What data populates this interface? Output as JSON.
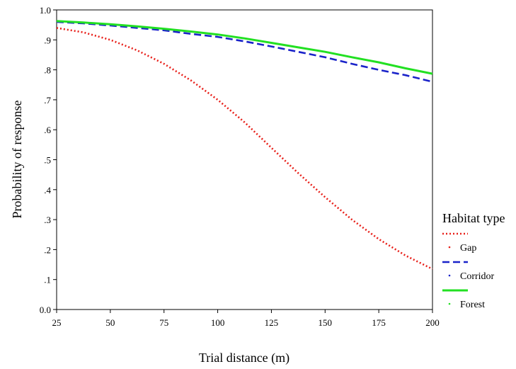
{
  "chart_data": {
    "type": "line",
    "title": "",
    "xlabel": "Trial distance (m)",
    "ylabel": "Probability of response",
    "xlim": [
      25,
      200
    ],
    "ylim": [
      0,
      1
    ],
    "x_ticks": [
      25,
      50,
      75,
      100,
      125,
      150,
      175,
      200
    ],
    "y_ticks": [
      {
        "value": 0.0,
        "label": "0.0"
      },
      {
        "value": 0.1,
        "label": ".1"
      },
      {
        "value": 0.2,
        "label": ".2"
      },
      {
        "value": 0.3,
        "label": ".3"
      },
      {
        "value": 0.4,
        "label": ".4"
      },
      {
        "value": 0.5,
        "label": ".5"
      },
      {
        "value": 0.6,
        "label": ".6"
      },
      {
        "value": 0.7,
        "label": ".7"
      },
      {
        "value": 0.8,
        "label": ".8"
      },
      {
        "value": 0.9,
        "label": ".9"
      },
      {
        "value": 1.0,
        "label": "1.0"
      }
    ],
    "grid": false,
    "legend": {
      "title": "Habitat type",
      "placement": "right"
    },
    "x": [
      25,
      37.5,
      50,
      62.5,
      75,
      87.5,
      100,
      112.5,
      125,
      137.5,
      150,
      162.5,
      175,
      187.5,
      200
    ],
    "series": [
      {
        "name": "Gap",
        "color": "#e8201a",
        "style": "dotted",
        "values": [
          0.94,
          0.925,
          0.9,
          0.865,
          0.82,
          0.765,
          0.7,
          0.625,
          0.54,
          0.455,
          0.375,
          0.3,
          0.235,
          0.18,
          0.135
        ]
      },
      {
        "name": "Corridor",
        "color": "#1a23c9",
        "style": "dashed",
        "values": [
          0.96,
          0.955,
          0.948,
          0.94,
          0.932,
          0.92,
          0.91,
          0.895,
          0.878,
          0.86,
          0.842,
          0.82,
          0.8,
          0.782,
          0.76
        ]
      },
      {
        "name": "Forest",
        "color": "#22e022",
        "style": "solid",
        "values": [
          0.963,
          0.958,
          0.952,
          0.945,
          0.937,
          0.928,
          0.918,
          0.905,
          0.89,
          0.875,
          0.86,
          0.842,
          0.825,
          0.805,
          0.787
        ]
      }
    ]
  }
}
